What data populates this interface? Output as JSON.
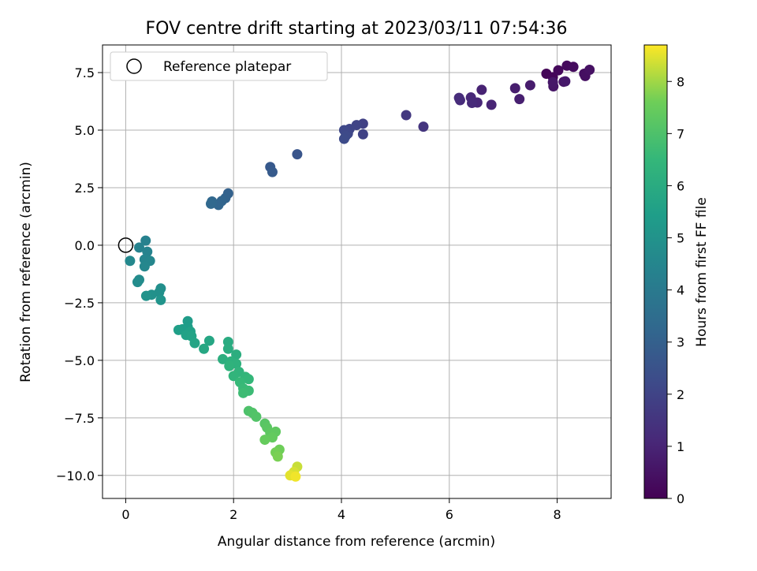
{
  "chart_data": {
    "type": "scatter",
    "title": "FOV centre drift starting at 2023/03/11 07:54:36",
    "xlabel": "Angular distance from reference (arcmin)",
    "ylabel": "Rotation from reference (arcmin)",
    "xlim": [
      -0.43,
      9.0
    ],
    "ylim": [
      -11.0,
      8.7
    ],
    "xticks": [
      0,
      2,
      4,
      6,
      8
    ],
    "xtick_labels": [
      "0",
      "2",
      "4",
      "6",
      "8"
    ],
    "yticks": [
      7.5,
      5.0,
      2.5,
      0.0,
      -2.5,
      -5.0,
      -7.5,
      -10.0
    ],
    "ytick_labels": [
      "7.5",
      "5.0",
      "2.5",
      "0.0",
      "−2.5",
      "−5.0",
      "−7.5",
      "−10.0"
    ],
    "grid": true,
    "legend": {
      "placement": "top-left",
      "entries": [
        "Reference platepar"
      ]
    },
    "reference_point": {
      "x": 0,
      "y": 0
    },
    "colorbar": {
      "label": "Hours from first FF file",
      "colormap": "viridis",
      "range": [
        0,
        8.7
      ],
      "ticks": [
        0,
        1,
        2,
        3,
        4,
        5,
        6,
        7,
        8
      ],
      "tick_labels": [
        "0",
        "1",
        "2",
        "3",
        "4",
        "5",
        "6",
        "7",
        "8"
      ]
    },
    "points": [
      {
        "x": 7.8,
        "y": 7.45,
        "h": 0.1
      },
      {
        "x": 7.92,
        "y": 7.3,
        "h": 0.15
      },
      {
        "x": 8.02,
        "y": 7.6,
        "h": 0.2
      },
      {
        "x": 8.18,
        "y": 7.8,
        "h": 0.25
      },
      {
        "x": 8.3,
        "y": 7.75,
        "h": 0.3
      },
      {
        "x": 8.5,
        "y": 7.45,
        "h": 0.35
      },
      {
        "x": 8.52,
        "y": 7.35,
        "h": 0.4
      },
      {
        "x": 8.6,
        "y": 7.62,
        "h": 0.45
      },
      {
        "x": 8.12,
        "y": 7.1,
        "h": 0.5
      },
      {
        "x": 7.93,
        "y": 6.9,
        "h": 0.55
      },
      {
        "x": 7.92,
        "y": 7.08,
        "h": 0.6
      },
      {
        "x": 8.15,
        "y": 7.12,
        "h": 0.65
      },
      {
        "x": 7.5,
        "y": 6.95,
        "h": 0.75
      },
      {
        "x": 7.22,
        "y": 6.82,
        "h": 0.8
      },
      {
        "x": 7.3,
        "y": 6.35,
        "h": 0.85
      },
      {
        "x": 6.6,
        "y": 6.75,
        "h": 0.95
      },
      {
        "x": 6.78,
        "y": 6.1,
        "h": 1.0
      },
      {
        "x": 6.52,
        "y": 6.2,
        "h": 1.05
      },
      {
        "x": 6.4,
        "y": 6.42,
        "h": 1.1
      },
      {
        "x": 6.42,
        "y": 6.18,
        "h": 1.15
      },
      {
        "x": 6.2,
        "y": 6.3,
        "h": 1.2
      },
      {
        "x": 6.18,
        "y": 6.4,
        "h": 1.25
      },
      {
        "x": 5.52,
        "y": 5.15,
        "h": 1.5
      },
      {
        "x": 5.2,
        "y": 5.65,
        "h": 1.6
      },
      {
        "x": 4.4,
        "y": 5.28,
        "h": 1.9
      },
      {
        "x": 4.4,
        "y": 4.82,
        "h": 1.95
      },
      {
        "x": 4.28,
        "y": 5.22,
        "h": 2.0
      },
      {
        "x": 4.15,
        "y": 5.05,
        "h": 2.05
      },
      {
        "x": 4.12,
        "y": 4.85,
        "h": 2.1
      },
      {
        "x": 4.05,
        "y": 5.0,
        "h": 2.15
      },
      {
        "x": 4.08,
        "y": 4.75,
        "h": 2.2
      },
      {
        "x": 4.05,
        "y": 4.62,
        "h": 2.25
      },
      {
        "x": 3.18,
        "y": 3.95,
        "h": 2.6
      },
      {
        "x": 2.68,
        "y": 3.4,
        "h": 2.75
      },
      {
        "x": 2.72,
        "y": 3.18,
        "h": 2.8
      },
      {
        "x": 1.9,
        "y": 2.25,
        "h": 3.05
      },
      {
        "x": 1.85,
        "y": 2.05,
        "h": 3.1
      },
      {
        "x": 1.78,
        "y": 1.92,
        "h": 3.15
      },
      {
        "x": 1.72,
        "y": 1.75,
        "h": 3.2
      },
      {
        "x": 1.6,
        "y": 1.9,
        "h": 3.25
      },
      {
        "x": 1.58,
        "y": 1.8,
        "h": 3.3
      },
      {
        "x": 0.37,
        "y": 0.2,
        "h": 4.3
      },
      {
        "x": 0.25,
        "y": -0.1,
        "h": 4.35
      },
      {
        "x": 0.4,
        "y": -0.28,
        "h": 4.4
      },
      {
        "x": 0.35,
        "y": -0.62,
        "h": 4.45
      },
      {
        "x": 0.45,
        "y": -0.68,
        "h": 4.5
      },
      {
        "x": 0.35,
        "y": -0.92,
        "h": 4.55
      },
      {
        "x": 0.08,
        "y": -0.68,
        "h": 4.6
      },
      {
        "x": 0.25,
        "y": -1.5,
        "h": 4.7
      },
      {
        "x": 0.22,
        "y": -1.6,
        "h": 4.75
      },
      {
        "x": 0.65,
        "y": -1.88,
        "h": 4.85
      },
      {
        "x": 0.62,
        "y": -2.05,
        "h": 4.9
      },
      {
        "x": 0.48,
        "y": -2.15,
        "h": 4.95
      },
      {
        "x": 0.38,
        "y": -2.2,
        "h": 5.0
      },
      {
        "x": 0.65,
        "y": -2.38,
        "h": 5.05
      },
      {
        "x": 1.15,
        "y": -3.3,
        "h": 5.35
      },
      {
        "x": 1.15,
        "y": -3.55,
        "h": 5.4
      },
      {
        "x": 1.05,
        "y": -3.65,
        "h": 5.45
      },
      {
        "x": 0.98,
        "y": -3.68,
        "h": 5.5
      },
      {
        "x": 1.2,
        "y": -3.75,
        "h": 5.55
      },
      {
        "x": 1.12,
        "y": -3.9,
        "h": 5.6
      },
      {
        "x": 1.22,
        "y": -3.95,
        "h": 5.65
      },
      {
        "x": 1.28,
        "y": -4.25,
        "h": 5.7
      },
      {
        "x": 1.55,
        "y": -4.15,
        "h": 5.8
      },
      {
        "x": 1.45,
        "y": -4.5,
        "h": 5.85
      },
      {
        "x": 1.9,
        "y": -4.2,
        "h": 6.0
      },
      {
        "x": 1.9,
        "y": -4.5,
        "h": 6.05
      },
      {
        "x": 2.05,
        "y": -4.75,
        "h": 6.1
      },
      {
        "x": 1.8,
        "y": -4.95,
        "h": 6.15
      },
      {
        "x": 1.95,
        "y": -5.05,
        "h": 6.2
      },
      {
        "x": 2.05,
        "y": -5.15,
        "h": 6.25
      },
      {
        "x": 1.92,
        "y": -5.25,
        "h": 6.3
      },
      {
        "x": 2.1,
        "y": -5.5,
        "h": 6.35
      },
      {
        "x": 2.0,
        "y": -5.68,
        "h": 6.4
      },
      {
        "x": 2.22,
        "y": -5.72,
        "h": 6.45
      },
      {
        "x": 2.28,
        "y": -5.82,
        "h": 6.5
      },
      {
        "x": 2.12,
        "y": -5.95,
        "h": 6.55
      },
      {
        "x": 2.18,
        "y": -6.22,
        "h": 6.6
      },
      {
        "x": 2.28,
        "y": -6.32,
        "h": 6.65
      },
      {
        "x": 2.18,
        "y": -6.42,
        "h": 6.7
      },
      {
        "x": 2.28,
        "y": -7.2,
        "h": 7.0
      },
      {
        "x": 2.35,
        "y": -7.28,
        "h": 7.05
      },
      {
        "x": 2.42,
        "y": -7.45,
        "h": 7.1
      },
      {
        "x": 2.58,
        "y": -7.75,
        "h": 7.2
      },
      {
        "x": 2.62,
        "y": -7.92,
        "h": 7.25
      },
      {
        "x": 2.68,
        "y": -8.15,
        "h": 7.3
      },
      {
        "x": 2.78,
        "y": -8.1,
        "h": 7.35
      },
      {
        "x": 2.72,
        "y": -8.35,
        "h": 7.4
      },
      {
        "x": 2.58,
        "y": -8.45,
        "h": 7.45
      },
      {
        "x": 2.85,
        "y": -8.88,
        "h": 7.6
      },
      {
        "x": 2.78,
        "y": -9.0,
        "h": 7.65
      },
      {
        "x": 2.82,
        "y": -9.18,
        "h": 7.7
      },
      {
        "x": 3.18,
        "y": -9.62,
        "h": 8.3
      },
      {
        "x": 3.12,
        "y": -9.85,
        "h": 8.4
      },
      {
        "x": 3.05,
        "y": -10.0,
        "h": 8.5
      },
      {
        "x": 3.15,
        "y": -10.05,
        "h": 8.6
      }
    ]
  }
}
